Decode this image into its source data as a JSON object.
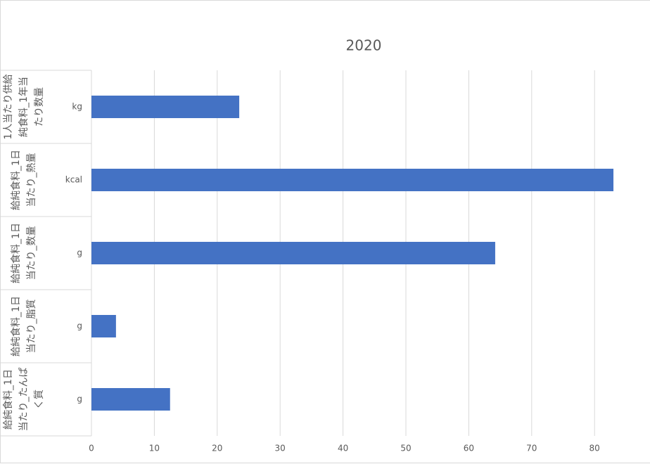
{
  "chart_data": {
    "type": "bar",
    "orientation": "horizontal",
    "title": "2020",
    "groups": [
      "1人当たり供給純食料_1年当たり数量",
      "給純食料_1日当たり_熱量",
      "給純食料_1日当たり_数量",
      "給純食料_1日当たり_脂質",
      "給純食料_1日当たり_たんぱく質"
    ],
    "categories": [
      "kg",
      "kcal",
      "g",
      "g",
      "g"
    ],
    "values": [
      23.5,
      83.0,
      64.2,
      3.9,
      12.5
    ],
    "color": "#4472c4",
    "xlim": [
      0,
      88
    ],
    "xticks": [
      0,
      10,
      20,
      30,
      40,
      50,
      60,
      70,
      80
    ],
    "grid": true
  }
}
